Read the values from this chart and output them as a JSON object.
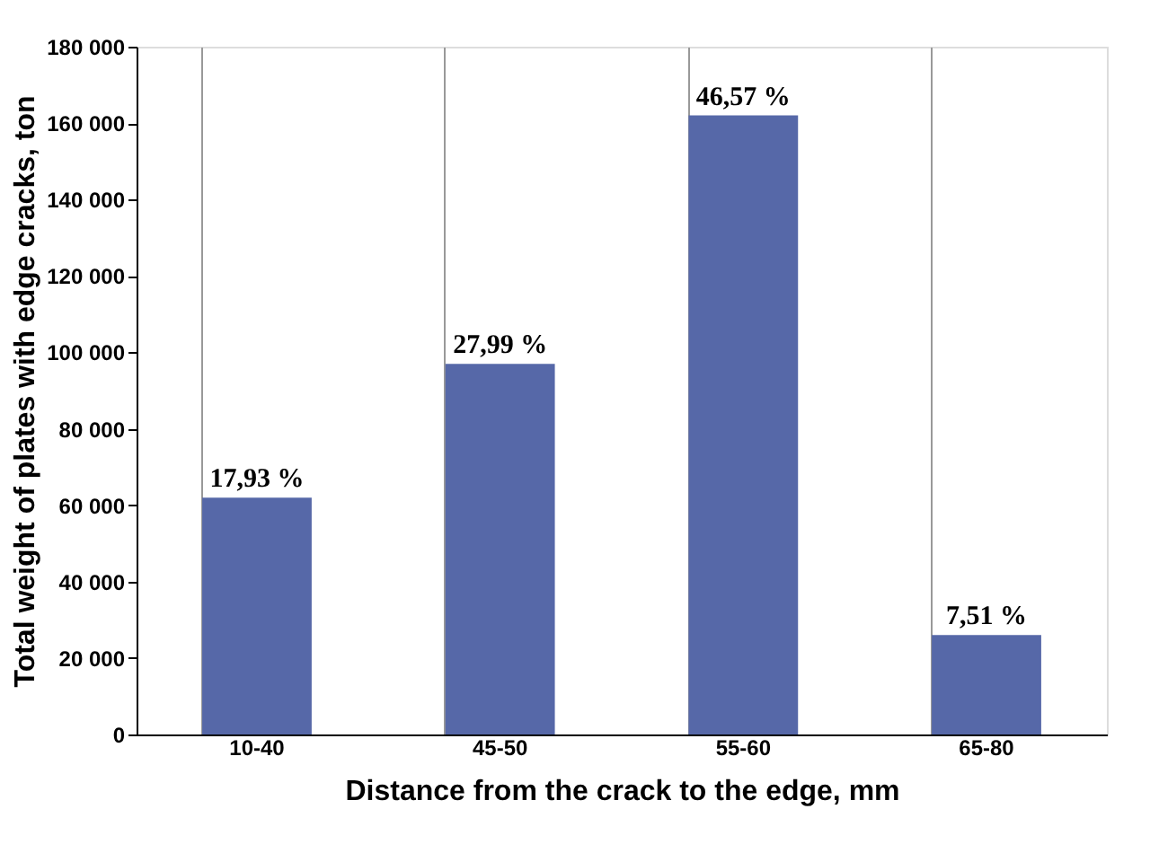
{
  "chart_data": {
    "type": "bar",
    "xlabel": "Distance from the crack to the edge, mm",
    "ylabel": "Total weight of plates with edge cracks, ton",
    "categories": [
      "10-40",
      "45-50",
      "55-60",
      "65-80"
    ],
    "values": [
      62000,
      97000,
      162000,
      26000
    ],
    "annotations": [
      {
        "text": "17,93 %",
        "x": "10-40",
        "y": 62000
      },
      {
        "text": "27,99 %",
        "x": "45-50",
        "y": 97000
      },
      {
        "text": "46,57 %",
        "x": "55-60",
        "y": 162000
      },
      {
        "text": "7,51 %",
        "x": "65-80",
        "y": 26000
      }
    ],
    "color": "#5668a8",
    "ylim": [
      0,
      180000
    ],
    "yticks": [
      {
        "value": 0,
        "label": "0"
      },
      {
        "value": 20000,
        "label": "20 000"
      },
      {
        "value": 40000,
        "label": "40 000"
      },
      {
        "value": 60000,
        "label": "60 000"
      },
      {
        "value": 80000,
        "label": "80 000"
      },
      {
        "value": 100000,
        "label": "100 000"
      },
      {
        "value": 120000,
        "label": "120 000"
      },
      {
        "value": 140000,
        "label": "140 000"
      },
      {
        "value": 160000,
        "label": "160 000"
      },
      {
        "value": 180000,
        "label": "180 000"
      }
    ],
    "grid": "x"
  }
}
